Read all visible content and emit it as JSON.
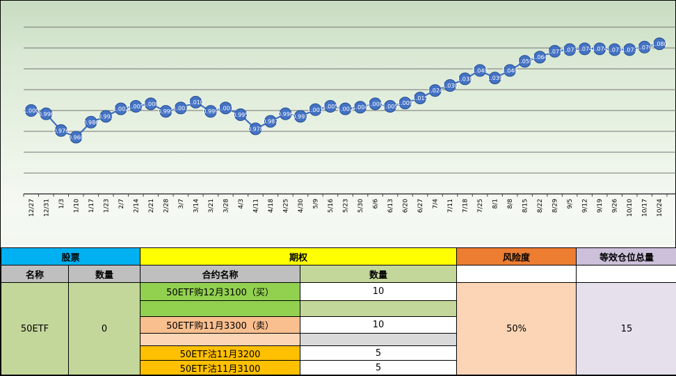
{
  "chart_data": {
    "type": "line",
    "title": "",
    "xlabel": "",
    "ylabel": "",
    "legend": "none",
    "grid": true,
    "ylim": [
      0.9,
      1.125
    ],
    "grid_step": 0.025,
    "grid_max": 1.1,
    "x": [
      "12/27",
      "12/31",
      "1/3",
      "1/10",
      "1/17",
      "1/23",
      "2/7",
      "2/14",
      "2/21",
      "2/28",
      "3/7",
      "3/14",
      "3/21",
      "3/28",
      "4/3",
      "4/11",
      "4/18",
      "4/25",
      "4/30",
      "5/9",
      "5/16",
      "5/23",
      "5/30",
      "6/6",
      "6/13",
      "6/20",
      "6/27",
      "7/4",
      "7/11",
      "7/18",
      "7/25",
      "8/1",
      "8/8",
      "8/15",
      "8/22",
      "8/29",
      "9/5",
      "9/12",
      "9/19",
      "9/26",
      "10/10",
      "10/17",
      "10/24"
    ],
    "values": [
      1.0,
      0.996,
      0.976,
      0.968,
      0.986,
      0.993,
      1.002,
      1.005,
      1.008,
      0.999,
      1.003,
      1.01,
      0.999,
      1.003,
      0.995,
      0.978,
      0.987,
      0.996,
      0.993,
      1.001,
      1.005,
      1.002,
      1.004,
      1.008,
      1.005,
      1.009,
      1.015,
      1.024,
      1.03,
      1.038,
      1.048,
      1.039,
      1.048,
      1.059,
      1.064,
      1.071,
      1.073,
      1.074,
      1.074,
      1.073,
      1.073,
      1.076,
      1.08
    ],
    "marker_color": "#4472C4",
    "marker_border": "#24508F",
    "line_color": "#4472C4",
    "label_color": "#FFFFFF",
    "grid_color": "#737373",
    "axis_color": "#404040",
    "background": "green-gradient"
  },
  "table": {
    "headers": {
      "stock": "股票",
      "option": "期权",
      "risk": "风险度",
      "equiv": "等效仓位总量"
    },
    "subheaders": {
      "name": "名称",
      "qty": "数量",
      "contract": "合约名称",
      "qty2": "数量"
    },
    "stock_name": "50ETF",
    "stock_qty": "0",
    "contracts": [
      {
        "name": "50ETF购12月3100（买）",
        "qty": "10",
        "color": "#92D050"
      },
      {
        "name": "",
        "qty": "",
        "color": "#92D050"
      },
      {
        "name": "50ETF购11月3300（卖）",
        "qty": "10",
        "color": "#FABF8F"
      },
      {
        "name": "",
        "qty": "",
        "color": "#FBD5B5"
      },
      {
        "name": "50ETF沽11月3200",
        "qty": "5",
        "color": "#FFC000"
      },
      {
        "name": "50ETF沽11月3100",
        "qty": "5",
        "color": "#FFC000"
      }
    ],
    "risk_value": "50%",
    "equiv_value": "15"
  },
  "colors": {
    "stock_header": "#00B0F0",
    "option_header": "#FFFF00",
    "risk_header": "#ED7D31",
    "equiv_header": "#CCC0DA",
    "subheader_gray": "#BFBFBF",
    "stock_cells_green": "#C4D79B",
    "risk_cell_peach": "#FBD5B5",
    "equiv_cell": "#E5E0EC"
  }
}
